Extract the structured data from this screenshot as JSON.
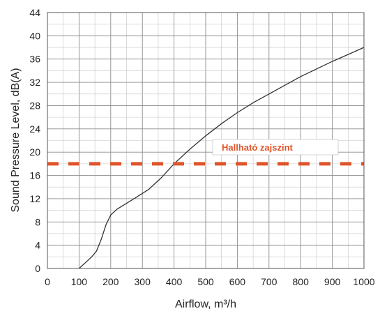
{
  "chart_data": {
    "type": "line",
    "xlabel": "Airflow, m³/h",
    "ylabel": "Sound Pressure Level, dB(A)",
    "xlim": [
      0,
      1000
    ],
    "ylim": [
      0,
      44
    ],
    "xticks": [
      0,
      100,
      200,
      300,
      400,
      500,
      600,
      700,
      800,
      900,
      1000
    ],
    "yticks": [
      0,
      4,
      8,
      12,
      16,
      20,
      24,
      28,
      32,
      36,
      40,
      44
    ],
    "grid": true,
    "series": [
      {
        "x": [
          100,
          120,
          140,
          155,
          170,
          185,
          200,
          220,
          250,
          280,
          320,
          360,
          400,
          450,
          500,
          550,
          600,
          650,
          700,
          750,
          800,
          850,
          900,
          950,
          1000
        ],
        "y": [
          0,
          1.0,
          2.0,
          3.0,
          5.0,
          7.5,
          9.2,
          10.2,
          11.2,
          12.2,
          13.6,
          15.6,
          18.0,
          20.5,
          22.8,
          24.9,
          26.8,
          28.5,
          30.0,
          31.5,
          33.0,
          34.3,
          35.6,
          36.8,
          38.0
        ],
        "color": "#333333"
      }
    ],
    "reference_line": {
      "y": 18,
      "label": "Hallható zajszint",
      "color": "#e0542a"
    }
  }
}
